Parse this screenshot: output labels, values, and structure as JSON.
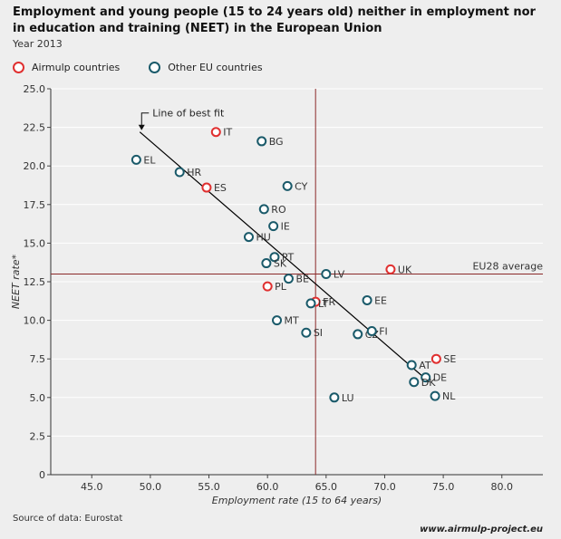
{
  "title": "Employment and young people (15 to 24 years old) neither in employment nor in education and training (NEET) in the European Union",
  "subtitle": "Year 2013",
  "source": "Source of data: Eurostat",
  "website": "www.airmulp-project.eu",
  "chart_data": {
    "type": "scatter",
    "xlabel": "Employment rate (15 to 64 years)",
    "ylabel": "NEET rate*",
    "xlim": [
      41.5,
      83.5
    ],
    "ylim": [
      0,
      25
    ],
    "xticks": [
      "45.0",
      "50.0",
      "55.0",
      "60.0",
      "65.0",
      "70.0",
      "75.0",
      "80.0"
    ],
    "xtick_values": [
      45,
      50,
      55,
      60,
      65,
      70,
      75,
      80
    ],
    "yticks": [
      "0",
      "2.5",
      "5.0",
      "7.5",
      "10.0",
      "12.5",
      "15.0",
      "17.5",
      "20.0",
      "22.5",
      "25.0"
    ],
    "ytick_values": [
      0,
      2.5,
      5,
      7.5,
      10,
      12.5,
      15,
      17.5,
      20,
      22.5,
      25
    ],
    "grid": "horizontal",
    "legend_position": "top-left",
    "colors": {
      "airmulp": "#e03030",
      "other": "#1a5a6a",
      "reference": "#8b2a2a",
      "fit": "#000000"
    },
    "series": [
      {
        "name": "Airmulp countries",
        "color": "#e03030",
        "points": [
          {
            "label": "IT",
            "x": 55.6,
            "y": 22.2
          },
          {
            "label": "ES",
            "x": 54.8,
            "y": 18.6
          },
          {
            "label": "PL",
            "x": 60.0,
            "y": 12.2
          },
          {
            "label": "FR",
            "x": 64.1,
            "y": 11.2
          },
          {
            "label": "UK",
            "x": 70.5,
            "y": 13.3
          },
          {
            "label": "SE",
            "x": 74.4,
            "y": 7.5
          }
        ]
      },
      {
        "name": "Other EU countries",
        "color": "#1a5a6a",
        "points": [
          {
            "label": "EL",
            "x": 48.8,
            "y": 20.4
          },
          {
            "label": "HR",
            "x": 52.5,
            "y": 19.6
          },
          {
            "label": "BG",
            "x": 59.5,
            "y": 21.6
          },
          {
            "label": "CY",
            "x": 61.7,
            "y": 18.7
          },
          {
            "label": "RO",
            "x": 59.7,
            "y": 17.2
          },
          {
            "label": "IE",
            "x": 60.5,
            "y": 16.1
          },
          {
            "label": "HU",
            "x": 58.4,
            "y": 15.4
          },
          {
            "label": "PT",
            "x": 60.6,
            "y": 14.1
          },
          {
            "label": "SK",
            "x": 59.9,
            "y": 13.7
          },
          {
            "label": "BE",
            "x": 61.8,
            "y": 12.7
          },
          {
            "label": "LV",
            "x": 65.0,
            "y": 13.0
          },
          {
            "label": "LT",
            "x": 63.7,
            "y": 11.1
          },
          {
            "label": "EE",
            "x": 68.5,
            "y": 11.3
          },
          {
            "label": "MT",
            "x": 60.8,
            "y": 10.0
          },
          {
            "label": "SI",
            "x": 63.3,
            "y": 9.2
          },
          {
            "label": "CZ",
            "x": 67.7,
            "y": 9.1
          },
          {
            "label": "FI",
            "x": 68.9,
            "y": 9.3
          },
          {
            "label": "AT",
            "x": 72.3,
            "y": 7.1
          },
          {
            "label": "DE",
            "x": 73.5,
            "y": 6.3
          },
          {
            "label": "DK",
            "x": 72.5,
            "y": 6.0
          },
          {
            "label": "NL",
            "x": 74.3,
            "y": 5.1
          },
          {
            "label": "LU",
            "x": 65.7,
            "y": 5.0
          }
        ]
      }
    ],
    "reference_lines": {
      "x": 64.1,
      "y": 13.0,
      "y_label": "EU28 average"
    },
    "fit_line": {
      "label": "Line of best fit",
      "x1": 49.1,
      "y1": 22.2,
      "x2": 73.8,
      "y2": 6.0
    }
  }
}
